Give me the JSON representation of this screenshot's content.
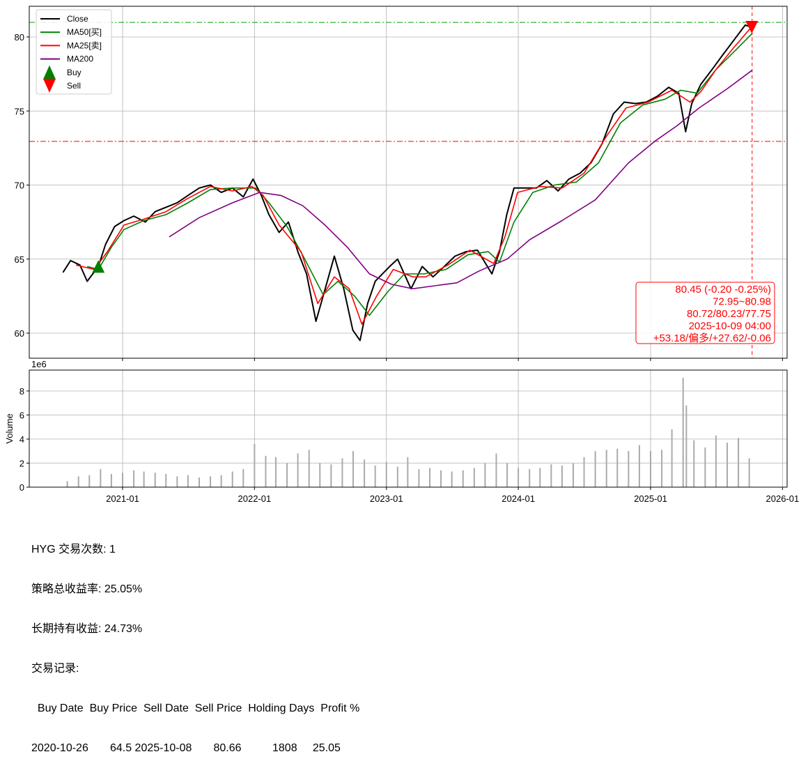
{
  "chart_data": [
    {
      "type": "line",
      "title": "",
      "xlabel": "",
      "ylabel": "",
      "ylim": [
        58.2,
        82.2
      ],
      "yticks": [
        "60",
        "65",
        "70",
        "75",
        "80"
      ],
      "xticks": [
        "2021-01",
        "2022-01",
        "2023-01",
        "2024-01",
        "2025-01",
        "2026-01"
      ],
      "grid": true,
      "legend": "top-left",
      "legend_entries": [
        {
          "label": "Close",
          "color": "#000000"
        },
        {
          "label": "MA50[买]",
          "color": "#008000"
        },
        {
          "label": "MA25[卖]",
          "color": "#ff0000"
        },
        {
          "label": "MA200",
          "color": "#800080"
        },
        {
          "label": "Buy",
          "color": "#008000",
          "marker": "triangle-up"
        },
        {
          "label": "Sell",
          "color": "#ff0000",
          "marker": "triangle-down"
        }
      ],
      "hlines": [
        {
          "y": 80.98,
          "color": "#00a000"
        },
        {
          "y": 72.95,
          "color": "#ff0000"
        }
      ],
      "vline": {
        "x": "2025-10-09",
        "color": "#ff0000"
      },
      "series": [
        {
          "name": "Close",
          "color": "#000000",
          "points": [
            [
              "2020-07-20",
              64.1
            ],
            [
              "2020-08-10",
              64.9
            ],
            [
              "2020-09-05",
              64.6
            ],
            [
              "2020-09-25",
              63.5
            ],
            [
              "2020-10-26",
              64.5
            ],
            [
              "2020-11-15",
              66.0
            ],
            [
              "2020-12-10",
              67.2
            ],
            [
              "2021-01-05",
              67.6
            ],
            [
              "2021-02-01",
              67.9
            ],
            [
              "2021-03-05",
              67.5
            ],
            [
              "2021-04-01",
              68.2
            ],
            [
              "2021-05-01",
              68.5
            ],
            [
              "2021-06-01",
              68.8
            ],
            [
              "2021-07-01",
              69.3
            ],
            [
              "2021-08-01",
              69.8
            ],
            [
              "2021-09-01",
              70.0
            ],
            [
              "2021-10-01",
              69.5
            ],
            [
              "2021-11-01",
              69.8
            ],
            [
              "2021-12-01",
              69.2
            ],
            [
              "2021-12-28",
              70.4
            ],
            [
              "2022-01-20",
              69.3
            ],
            [
              "2022-02-10",
              68.0
            ],
            [
              "2022-03-10",
              66.8
            ],
            [
              "2022-04-05",
              67.5
            ],
            [
              "2022-05-01",
              65.5
            ],
            [
              "2022-05-25",
              64.0
            ],
            [
              "2022-06-20",
              60.8
            ],
            [
              "2022-07-10",
              62.5
            ],
            [
              "2022-08-10",
              65.2
            ],
            [
              "2022-09-05",
              63.0
            ],
            [
              "2022-09-30",
              60.2
            ],
            [
              "2022-10-20",
              59.5
            ],
            [
              "2022-11-10",
              62.0
            ],
            [
              "2022-12-01",
              63.5
            ],
            [
              "2023-01-10",
              64.5
            ],
            [
              "2023-02-01",
              65.0
            ],
            [
              "2023-03-10",
              63.0
            ],
            [
              "2023-04-10",
              64.5
            ],
            [
              "2023-05-10",
              63.8
            ],
            [
              "2023-06-10",
              64.5
            ],
            [
              "2023-07-10",
              65.2
            ],
            [
              "2023-08-10",
              65.5
            ],
            [
              "2023-09-10",
              65.6
            ],
            [
              "2023-10-20",
              64.0
            ],
            [
              "2023-11-10",
              65.5
            ],
            [
              "2023-11-30",
              68.0
            ],
            [
              "2023-12-20",
              69.8
            ],
            [
              "2024-01-20",
              69.8
            ],
            [
              "2024-02-20",
              69.8
            ],
            [
              "2024-03-20",
              70.3
            ],
            [
              "2024-04-20",
              69.6
            ],
            [
              "2024-05-20",
              70.4
            ],
            [
              "2024-06-20",
              70.8
            ],
            [
              "2024-07-20",
              71.5
            ],
            [
              "2024-08-20",
              72.8
            ],
            [
              "2024-09-20",
              74.8
            ],
            [
              "2024-10-20",
              75.6
            ],
            [
              "2024-11-20",
              75.5
            ],
            [
              "2024-12-20",
              75.6
            ],
            [
              "2025-01-20",
              76.0
            ],
            [
              "2025-02-20",
              76.6
            ],
            [
              "2025-03-20",
              76.2
            ],
            [
              "2025-04-08",
              73.6
            ],
            [
              "2025-04-25",
              75.5
            ],
            [
              "2025-05-20",
              76.8
            ],
            [
              "2025-06-20",
              77.8
            ],
            [
              "2025-07-20",
              78.8
            ],
            [
              "2025-08-20",
              79.8
            ],
            [
              "2025-09-20",
              80.8
            ],
            [
              "2025-10-08",
              80.66
            ]
          ]
        },
        {
          "name": "MA50[买]",
          "color": "#008000",
          "points": [
            [
              "2020-09-25",
              64.5
            ],
            [
              "2020-10-26",
              64.3
            ],
            [
              "2020-12-01",
              65.8
            ],
            [
              "2021-01-05",
              67.0
            ],
            [
              "2021-03-01",
              67.6
            ],
            [
              "2021-05-01",
              68.0
            ],
            [
              "2021-07-01",
              68.8
            ],
            [
              "2021-09-01",
              69.7
            ],
            [
              "2021-11-01",
              69.8
            ],
            [
              "2022-01-05",
              69.8
            ],
            [
              "2022-02-10",
              68.8
            ],
            [
              "2022-04-01",
              67.2
            ],
            [
              "2022-05-20",
              65.0
            ],
            [
              "2022-07-10",
              62.6
            ],
            [
              "2022-08-20",
              63.5
            ],
            [
              "2022-10-05",
              62.5
            ],
            [
              "2022-11-15",
              61.2
            ],
            [
              "2023-01-05",
              62.8
            ],
            [
              "2023-02-20",
              64.0
            ],
            [
              "2023-04-15",
              64.0
            ],
            [
              "2023-06-15",
              64.3
            ],
            [
              "2023-08-15",
              65.3
            ],
            [
              "2023-10-10",
              65.5
            ],
            [
              "2023-11-10",
              64.8
            ],
            [
              "2023-12-20",
              67.5
            ],
            [
              "2024-02-10",
              69.5
            ],
            [
              "2024-04-10",
              70.0
            ],
            [
              "2024-06-10",
              70.2
            ],
            [
              "2024-08-10",
              71.5
            ],
            [
              "2024-10-10",
              74.2
            ],
            [
              "2024-12-10",
              75.4
            ],
            [
              "2025-02-10",
              75.8
            ],
            [
              "2025-03-25",
              76.4
            ],
            [
              "2025-05-10",
              76.2
            ],
            [
              "2025-07-01",
              77.8
            ],
            [
              "2025-08-20",
              79.0
            ],
            [
              "2025-10-09",
              80.23
            ]
          ]
        },
        {
          "name": "MA25[卖]",
          "color": "#ff0000",
          "points": [
            [
              "2020-08-25",
              64.6
            ],
            [
              "2020-10-15",
              64.3
            ],
            [
              "2020-11-20",
              65.5
            ],
            [
              "2021-01-05",
              67.3
            ],
            [
              "2021-03-01",
              67.7
            ],
            [
              "2021-05-01",
              68.2
            ],
            [
              "2021-07-01",
              69.1
            ],
            [
              "2021-09-01",
              69.9
            ],
            [
              "2021-11-01",
              69.6
            ],
            [
              "2021-12-25",
              69.9
            ],
            [
              "2022-01-25",
              69.3
            ],
            [
              "2022-03-10",
              67.3
            ],
            [
              "2022-05-10",
              65.5
            ],
            [
              "2022-06-25",
              62.0
            ],
            [
              "2022-08-10",
              63.8
            ],
            [
              "2022-09-20",
              63.0
            ],
            [
              "2022-10-25",
              60.6
            ],
            [
              "2022-12-05",
              62.5
            ],
            [
              "2023-01-20",
              64.3
            ],
            [
              "2023-03-15",
              63.8
            ],
            [
              "2023-04-20",
              63.8
            ],
            [
              "2023-06-20",
              64.6
            ],
            [
              "2023-08-20",
              65.6
            ],
            [
              "2023-10-25",
              64.7
            ],
            [
              "2023-11-25",
              66.5
            ],
            [
              "2023-12-30",
              69.5
            ],
            [
              "2024-03-01",
              69.9
            ],
            [
              "2024-05-01",
              69.8
            ],
            [
              "2024-07-01",
              70.8
            ],
            [
              "2024-09-01",
              73.3
            ],
            [
              "2024-10-25",
              75.2
            ],
            [
              "2024-12-25",
              75.6
            ],
            [
              "2025-03-01",
              76.4
            ],
            [
              "2025-04-20",
              75.6
            ],
            [
              "2025-05-20",
              76.3
            ],
            [
              "2025-07-01",
              77.8
            ],
            [
              "2025-08-20",
              79.3
            ],
            [
              "2025-10-09",
              80.72
            ]
          ]
        },
        {
          "name": "MA200",
          "color": "#800080",
          "points": [
            [
              "2021-05-10",
              66.5
            ],
            [
              "2021-08-01",
              67.8
            ],
            [
              "2021-11-01",
              68.8
            ],
            [
              "2022-01-15",
              69.5
            ],
            [
              "2022-03-15",
              69.3
            ],
            [
              "2022-05-15",
              68.6
            ],
            [
              "2022-07-15",
              67.3
            ],
            [
              "2022-09-15",
              65.8
            ],
            [
              "2022-11-15",
              64.0
            ],
            [
              "2023-01-15",
              63.3
            ],
            [
              "2023-03-15",
              63.0
            ],
            [
              "2023-05-15",
              63.2
            ],
            [
              "2023-07-15",
              63.4
            ],
            [
              "2023-09-15",
              64.2
            ],
            [
              "2023-12-01",
              65.0
            ],
            [
              "2024-02-01",
              66.3
            ],
            [
              "2024-05-01",
              67.6
            ],
            [
              "2024-08-01",
              69.0
            ],
            [
              "2024-11-01",
              71.5
            ],
            [
              "2025-01-15",
              73.0
            ],
            [
              "2025-03-15",
              74.0
            ],
            [
              "2025-05-15",
              75.2
            ],
            [
              "2025-08-01",
              76.5
            ],
            [
              "2025-10-09",
              77.75
            ]
          ]
        }
      ],
      "markers": [
        {
          "type": "Buy",
          "date": "2020-10-26",
          "price": 64.5
        },
        {
          "type": "Sell",
          "date": "2025-10-08",
          "price": 80.66
        }
      ],
      "annotation": [
        "80.45 (-0.20 -0.25%)",
        "72.95~80.98",
        "80.72/80.23/77.75",
        "2025-10-09 04:00",
        "+53.18/偏多/+27.62/-0.06"
      ]
    },
    {
      "type": "bar",
      "ylabel": "Volume",
      "scale_label": "1e6",
      "ylim": [
        0,
        9.6
      ],
      "yticks": [
        "0",
        "2",
        "4",
        "6",
        "8"
      ],
      "xticks": [
        "2021-01",
        "2022-01",
        "2023-01",
        "2024-01",
        "2025-01",
        "2026-01"
      ],
      "grid": true,
      "bars": [
        [
          "2020-08-01",
          0.5
        ],
        [
          "2020-09-01",
          0.9
        ],
        [
          "2020-10-01",
          1.0
        ],
        [
          "2020-11-01",
          1.5
        ],
        [
          "2020-12-01",
          1.1
        ],
        [
          "2021-01-01",
          1.2
        ],
        [
          "2021-02-01",
          1.4
        ],
        [
          "2021-03-01",
          1.3
        ],
        [
          "2021-04-01",
          1.2
        ],
        [
          "2021-05-01",
          1.1
        ],
        [
          "2021-06-01",
          0.9
        ],
        [
          "2021-07-01",
          1.0
        ],
        [
          "2021-08-01",
          0.8
        ],
        [
          "2021-09-01",
          0.9
        ],
        [
          "2021-10-01",
          1.0
        ],
        [
          "2021-11-01",
          1.3
        ],
        [
          "2021-12-01",
          1.5
        ],
        [
          "2022-01-01",
          3.6
        ],
        [
          "2022-02-01",
          2.6
        ],
        [
          "2022-03-01",
          2.5
        ],
        [
          "2022-04-01",
          2.0
        ],
        [
          "2022-05-01",
          2.8
        ],
        [
          "2022-06-01",
          3.1
        ],
        [
          "2022-07-01",
          2.0
        ],
        [
          "2022-08-01",
          1.9
        ],
        [
          "2022-09-01",
          2.4
        ],
        [
          "2022-10-01",
          3.0
        ],
        [
          "2022-11-01",
          2.3
        ],
        [
          "2022-12-01",
          1.8
        ],
        [
          "2023-01-01",
          2.1
        ],
        [
          "2023-02-01",
          1.7
        ],
        [
          "2023-03-01",
          2.5
        ],
        [
          "2023-04-01",
          1.5
        ],
        [
          "2023-05-01",
          1.6
        ],
        [
          "2023-06-01",
          1.4
        ],
        [
          "2023-07-01",
          1.3
        ],
        [
          "2023-08-01",
          1.4
        ],
        [
          "2023-09-01",
          1.6
        ],
        [
          "2023-10-01",
          2.0
        ],
        [
          "2023-11-01",
          2.8
        ],
        [
          "2023-12-01",
          2.0
        ],
        [
          "2024-01-01",
          1.6
        ],
        [
          "2024-02-01",
          1.5
        ],
        [
          "2024-03-01",
          1.6
        ],
        [
          "2024-04-01",
          1.9
        ],
        [
          "2024-05-01",
          1.8
        ],
        [
          "2024-06-01",
          2.0
        ],
        [
          "2024-07-01",
          2.5
        ],
        [
          "2024-08-01",
          3.0
        ],
        [
          "2024-09-01",
          3.1
        ],
        [
          "2024-10-01",
          3.2
        ],
        [
          "2024-11-01",
          3.0
        ],
        [
          "2024-12-01",
          3.5
        ],
        [
          "2025-01-01",
          3.0
        ],
        [
          "2025-02-01",
          3.1
        ],
        [
          "2025-03-01",
          4.8
        ],
        [
          "2025-04-01",
          9.1
        ],
        [
          "2025-04-10",
          6.8
        ],
        [
          "2025-05-01",
          3.9
        ],
        [
          "2025-06-01",
          3.3
        ],
        [
          "2025-07-01",
          4.3
        ],
        [
          "2025-08-01",
          3.7
        ],
        [
          "2025-09-01",
          4.1
        ],
        [
          "2025-10-01",
          2.4
        ]
      ]
    }
  ],
  "summary": {
    "lines": [
      "HYG 交易次数: 1",
      "策略总收益率: 25.05%",
      "长期持有收益: 24.73%",
      "交易记录:"
    ],
    "table_header": "  Buy Date  Buy Price  Sell Date  Sell Price  Holding Days  Profit %",
    "table_row": "2020-10-26       64.5 2025-10-08       80.66          1808     25.05"
  }
}
